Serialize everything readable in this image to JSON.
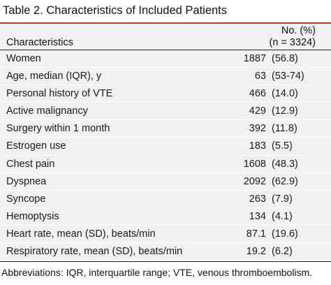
{
  "title": "Table 2. Characteristics of Included Patients",
  "header": {
    "characteristics": "Characteristics",
    "value_line1": "No. (%)",
    "value_line2": "(n = 3324)"
  },
  "rows": [
    {
      "label": "Women",
      "num": "1887",
      "paren": "(56.8)"
    },
    {
      "label": "Age, median (IQR), y",
      "num": "63",
      "paren": "(53-74)"
    },
    {
      "label": "Personal history of VTE",
      "num": "466",
      "paren": "(14.0)"
    },
    {
      "label": "Active malignancy",
      "num": "429",
      "paren": "(12.9)"
    },
    {
      "label": "Surgery within 1 month",
      "num": "392",
      "paren": "(11.8)"
    },
    {
      "label": "Estrogen use",
      "num": "183",
      "paren": "(5.5)"
    },
    {
      "label": "Chest pain",
      "num": "1608",
      "paren": "(48.3)"
    },
    {
      "label": "Dyspnea",
      "num": "2092",
      "paren": "(62.9)"
    },
    {
      "label": "Syncope",
      "num": "263",
      "paren": "(7.9)"
    },
    {
      "label": "Hemoptysis",
      "num": "134",
      "paren": "(4.1)"
    },
    {
      "label": "Heart rate, mean (SD), beats/min",
      "num": "87.1",
      "paren": "(19.6)"
    },
    {
      "label": "Respiratory rate, mean (SD), beats/min",
      "num": "19.2",
      "paren": "(6.2)"
    }
  ],
  "footnote": "Abbreviations: IQR, interquartile range; VTE, venous thromboembolism.",
  "colors": {
    "accent_rule": "#c0392b",
    "table_background": "#f1f1f1"
  }
}
